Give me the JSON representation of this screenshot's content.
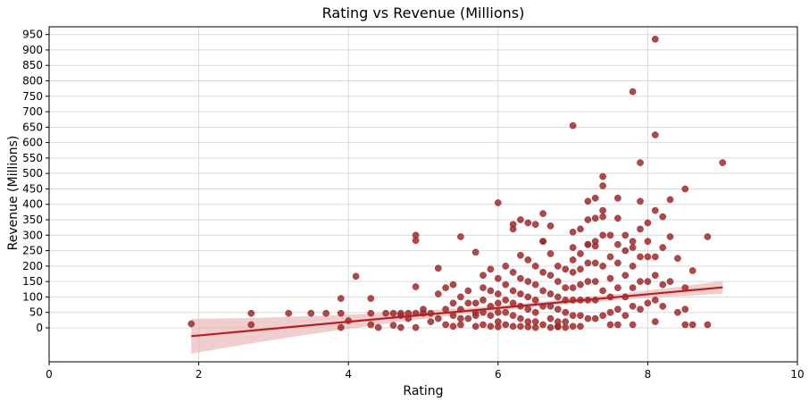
{
  "chart_data": {
    "type": "scatter",
    "title": "Rating vs Revenue (Millions)",
    "xlabel": "Rating",
    "ylabel": "Revenue (Millions)",
    "xlim": [
      0,
      10
    ],
    "ylim": [
      -110,
      975
    ],
    "x_ticks": [
      0,
      2,
      4,
      6,
      8,
      10
    ],
    "y_ticks": [
      0,
      50,
      100,
      150,
      200,
      250,
      300,
      350,
      400,
      450,
      500,
      550,
      600,
      650,
      700,
      750,
      800,
      850,
      900,
      950
    ],
    "grid": true,
    "legend": "none",
    "colors": {
      "points": "#9e2a2b",
      "trend": "#b22222",
      "band": "#e8b4b4"
    },
    "series": [
      {
        "x": [
          1.9,
          2.7,
          2.7,
          3.2,
          3.5,
          3.7,
          3.9,
          3.9,
          3.9,
          4.0,
          4.1,
          4.3,
          4.3,
          4.3,
          4.4,
          4.5,
          4.6,
          4.6,
          4.7,
          4.7,
          4.7,
          4.8,
          4.8,
          4.9,
          4.9,
          4.9,
          4.9,
          4.9,
          5.0,
          5.0,
          5.1,
          5.1,
          5.2,
          5.2,
          5.2,
          5.3,
          5.3,
          5.3,
          5.4,
          5.4,
          5.4,
          5.4,
          5.5,
          5.5,
          5.5,
          5.5,
          5.6,
          5.6,
          5.6,
          5.7,
          5.7,
          5.7,
          5.7,
          5.8,
          5.8,
          5.8,
          5.8,
          5.8,
          5.9,
          5.9,
          5.9,
          5.9,
          5.9,
          6.0,
          6.0,
          6.0,
          6.0,
          6.0,
          6.0,
          6.1,
          6.1,
          6.1,
          6.1,
          6.1,
          6.2,
          6.2,
          6.2,
          6.2,
          6.2,
          6.2,
          6.2,
          6.3,
          6.3,
          6.3,
          6.3,
          6.3,
          6.3,
          6.3,
          6.4,
          6.4,
          6.4,
          6.4,
          6.4,
          6.4,
          6.4,
          6.5,
          6.5,
          6.5,
          6.5,
          6.5,
          6.5,
          6.5,
          6.6,
          6.6,
          6.6,
          6.6,
          6.6,
          6.6,
          6.7,
          6.7,
          6.7,
          6.7,
          6.7,
          6.7,
          6.7,
          6.8,
          6.8,
          6.8,
          6.8,
          6.8,
          6.8,
          6.8,
          6.9,
          6.9,
          6.9,
          6.9,
          6.9,
          6.9,
          7.0,
          7.0,
          7.0,
          7.0,
          7.0,
          7.0,
          7.0,
          7.0,
          7.1,
          7.1,
          7.1,
          7.1,
          7.1,
          7.1,
          7.1,
          7.2,
          7.2,
          7.2,
          7.2,
          7.2,
          7.2,
          7.2,
          7.3,
          7.3,
          7.3,
          7.3,
          7.3,
          7.3,
          7.3,
          7.4,
          7.4,
          7.4,
          7.4,
          7.4,
          7.4,
          7.5,
          7.5,
          7.5,
          7.5,
          7.5,
          7.5,
          7.6,
          7.6,
          7.6,
          7.6,
          7.6,
          7.6,
          7.7,
          7.7,
          7.7,
          7.7,
          7.7,
          7.8,
          7.8,
          7.8,
          7.8,
          7.8,
          7.8,
          7.9,
          7.9,
          7.9,
          7.9,
          7.9,
          8.0,
          8.0,
          8.0,
          8.0,
          8.0,
          8.1,
          8.1,
          8.1,
          8.1,
          8.1,
          8.2,
          8.2,
          8.2,
          8.3,
          8.3,
          8.3,
          8.4,
          8.4,
          8.5,
          8.5,
          8.5,
          8.6,
          8.6,
          8.8,
          8.8,
          9.0,
          7.0,
          7.8,
          8.1,
          8.1,
          7.9,
          7.4,
          6.0,
          7.2,
          7.3,
          7.4,
          7.6,
          8.2,
          8.5,
          5.7,
          5.5,
          6.6
        ],
        "y": [
          13,
          47,
          10,
          47,
          47,
          47,
          47,
          95,
          1,
          23,
          167,
          47,
          95,
          10,
          1,
          47,
          47,
          8,
          47,
          40,
          1,
          47,
          30,
          300,
          283,
          47,
          133,
          1,
          47,
          60,
          47,
          20,
          193,
          110,
          30,
          130,
          60,
          10,
          140,
          80,
          40,
          5,
          295,
          100,
          60,
          10,
          120,
          80,
          30,
          245,
          80,
          40,
          5,
          170,
          130,
          90,
          50,
          10,
          190,
          120,
          70,
          40,
          5,
          160,
          110,
          80,
          50,
          20,
          3,
          200,
          140,
          90,
          50,
          10,
          335,
          320,
          180,
          120,
          80,
          40,
          5,
          350,
          235,
          160,
          110,
          70,
          30,
          5,
          340,
          220,
          150,
          100,
          60,
          20,
          3,
          335,
          200,
          140,
          90,
          50,
          20,
          1,
          370,
          280,
          180,
          120,
          70,
          10,
          330,
          240,
          170,
          110,
          70,
          30,
          1,
          200,
          150,
          100,
          60,
          20,
          5,
          3,
          190,
          130,
          90,
          50,
          20,
          1,
          310,
          260,
          220,
          180,
          130,
          90,
          40,
          5,
          320,
          240,
          190,
          140,
          90,
          40,
          5,
          410,
          350,
          270,
          210,
          150,
          90,
          30,
          420,
          355,
          280,
          210,
          150,
          90,
          30,
          490,
          380,
          300,
          200,
          120,
          40,
          300,
          230,
          160,
          100,
          50,
          10,
          420,
          270,
          210,
          130,
          60,
          10,
          300,
          250,
          170,
          100,
          40,
          280,
          260,
          200,
          130,
          70,
          10,
          410,
          320,
          230,
          150,
          60,
          340,
          280,
          230,
          150,
          80,
          380,
          230,
          170,
          90,
          20,
          360,
          140,
          70,
          415,
          295,
          150,
          225,
          50,
          450,
          130,
          60,
          185,
          10,
          295,
          10,
          535,
          655,
          765,
          935,
          625,
          535,
          460,
          405,
          270,
          265,
          360,
          355,
          260,
          10,
          50,
          30,
          280
        ],
        "trend": {
          "x": [
            1.9,
            9.0
          ],
          "y": [
            -27,
            131
          ]
        }
      }
    ]
  }
}
